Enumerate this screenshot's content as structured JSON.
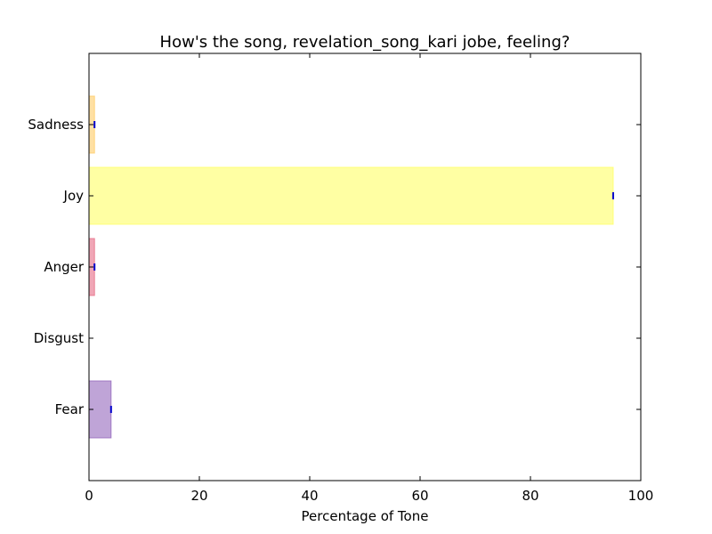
{
  "chart_data": {
    "type": "bar",
    "orientation": "horizontal",
    "title": "How's the song, revelation_song_kari jobe, feeling?",
    "xlabel": "Percentage of Tone",
    "ylabel": "",
    "xlim": [
      0,
      100
    ],
    "x_ticks": [
      0,
      20,
      40,
      60,
      80,
      100
    ],
    "categories": [
      "Fear",
      "Disgust",
      "Anger",
      "Joy",
      "Sadness"
    ],
    "values": [
      4,
      0,
      1,
      95,
      1
    ],
    "colors": [
      "#9467bd",
      "#2ca02c",
      "#e66b85",
      "#ffff66",
      "#ffcc66"
    ],
    "error_marker_color": "#0000cc",
    "grid": false,
    "legend": "none"
  }
}
